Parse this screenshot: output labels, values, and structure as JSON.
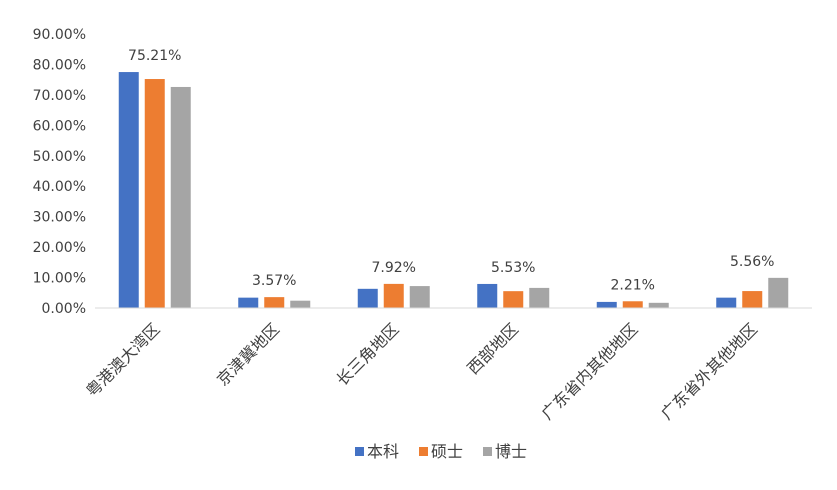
{
  "chart_data": {
    "type": "bar",
    "categories": [
      "粤港澳大湾区",
      "京津冀地区",
      "长三角地区",
      "西部地区",
      "广东省内其他地区",
      "广东省外其他地区"
    ],
    "series": [
      {
        "name": "本科",
        "color": "#4472C4",
        "values": [
          77.5,
          3.4,
          6.3,
          7.9,
          2.0,
          3.4
        ]
      },
      {
        "name": "硕士",
        "color": "#ED7D31",
        "values": [
          75.21,
          3.57,
          7.92,
          5.53,
          2.21,
          5.56
        ]
      },
      {
        "name": "博士",
        "color": "#A5A5A5",
        "values": [
          72.6,
          2.4,
          7.2,
          6.6,
          1.7,
          9.9
        ]
      }
    ],
    "data_labels": [
      "75.21%",
      "3.57%",
      "7.92%",
      "5.53%",
      "2.21%",
      "5.56%"
    ],
    "y_ticks": [
      "0.00%",
      "10.00%",
      "20.00%",
      "30.00%",
      "40.00%",
      "50.00%",
      "60.00%",
      "70.00%",
      "80.00%",
      "90.00%"
    ],
    "ylim": [
      0,
      90
    ],
    "title": "",
    "xlabel": "",
    "ylabel": "",
    "grid": false,
    "legend_position": "bottom"
  }
}
